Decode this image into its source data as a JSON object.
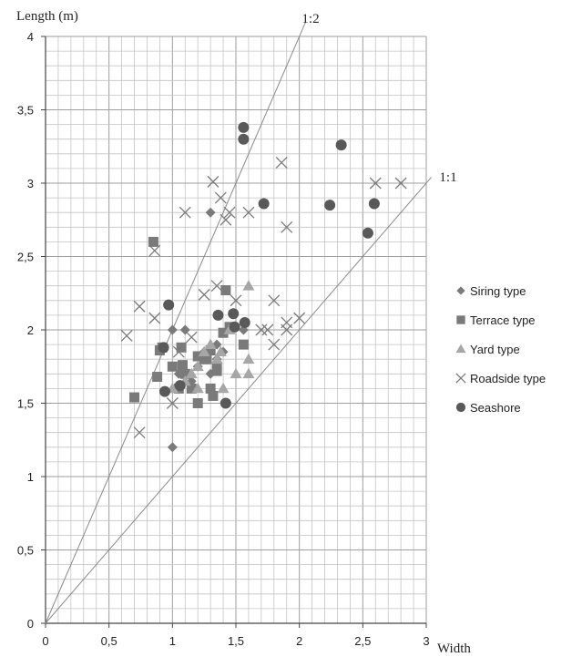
{
  "chart_data": {
    "type": "scatter",
    "xlabel": "Width",
    "ylabel": "Length (m)",
    "xlim": [
      0,
      3
    ],
    "ylim": [
      0,
      4
    ],
    "x_ticks": [
      "0",
      "0,5",
      "1",
      "1,5",
      "2",
      "2,5",
      "3"
    ],
    "y_ticks": [
      "0",
      "0,5",
      "1",
      "1,5",
      "2",
      "2,5",
      "3",
      "3,5",
      "4"
    ],
    "grid": true,
    "legend_position": "right",
    "reference_lines": [
      {
        "label": "1:2",
        "slope": 2
      },
      {
        "label": "1:1",
        "slope": 1
      }
    ],
    "series": [
      {
        "name": "Siring type",
        "marker": "diamond",
        "color": "#7a7a7a",
        "points": [
          [
            1.0,
            1.2
          ],
          [
            1.0,
            2.0
          ],
          [
            1.1,
            2.0
          ],
          [
            1.3,
            2.8
          ],
          [
            1.35,
            1.8
          ],
          [
            1.35,
            1.9
          ],
          [
            1.3,
            1.7
          ],
          [
            1.56,
            2.0
          ],
          [
            1.2,
            1.75
          ],
          [
            1.15,
            1.65
          ],
          [
            1.25,
            1.85
          ],
          [
            1.05,
            1.7
          ],
          [
            1.4,
            1.85
          ],
          [
            1.3,
            1.6
          ]
        ]
      },
      {
        "name": "Terrace type",
        "marker": "square",
        "color": "#7a7a7a",
        "points": [
          [
            0.85,
            2.6
          ],
          [
            0.7,
            1.54
          ],
          [
            0.88,
            1.68
          ],
          [
            0.92,
            1.88
          ],
          [
            0.9,
            1.86
          ],
          [
            1.0,
            1.75
          ],
          [
            1.07,
            1.88
          ],
          [
            1.08,
            1.76
          ],
          [
            1.1,
            1.7
          ],
          [
            1.05,
            1.6
          ],
          [
            1.15,
            1.6
          ],
          [
            1.2,
            1.5
          ],
          [
            1.25,
            1.8
          ],
          [
            1.3,
            1.86
          ],
          [
            1.3,
            1.6
          ],
          [
            1.32,
            1.55
          ],
          [
            1.35,
            1.75
          ],
          [
            1.35,
            1.72
          ],
          [
            1.4,
            1.98
          ],
          [
            1.42,
            2.27
          ],
          [
            1.45,
            2.02
          ],
          [
            1.56,
            1.9
          ],
          [
            1.2,
            1.82
          ],
          [
            1.27,
            1.8
          ]
        ]
      },
      {
        "name": "Yard type",
        "marker": "triangle",
        "color": "#a6a6a6",
        "points": [
          [
            1.6,
            2.3
          ],
          [
            1.6,
            1.8
          ],
          [
            1.6,
            1.7
          ],
          [
            1.5,
            1.7
          ],
          [
            1.4,
            1.6
          ],
          [
            1.35,
            1.8
          ],
          [
            1.3,
            1.9
          ],
          [
            1.25,
            1.85
          ],
          [
            1.2,
            1.75
          ],
          [
            1.15,
            1.7
          ],
          [
            1.0,
            1.6
          ],
          [
            1.1,
            1.65
          ],
          [
            1.2,
            1.6
          ],
          [
            1.38,
            1.85
          ],
          [
            1.45,
            2.0
          ]
        ]
      },
      {
        "name": "Roadside type",
        "marker": "cross",
        "color": "#7a7a7a",
        "points": [
          [
            0.64,
            1.96
          ],
          [
            0.74,
            2.16
          ],
          [
            0.74,
            1.3
          ],
          [
            0.86,
            2.08
          ],
          [
            0.86,
            2.54
          ],
          [
            1.0,
            1.5
          ],
          [
            1.1,
            2.8
          ],
          [
            1.32,
            3.01
          ],
          [
            1.38,
            2.9
          ],
          [
            1.45,
            2.8
          ],
          [
            1.6,
            2.8
          ],
          [
            1.86,
            3.14
          ],
          [
            1.9,
            2.7
          ],
          [
            2.6,
            3.0
          ],
          [
            2.8,
            3.0
          ],
          [
            1.25,
            2.24
          ],
          [
            1.35,
            2.3
          ],
          [
            1.5,
            2.2
          ],
          [
            1.8,
            2.2
          ],
          [
            1.7,
            2.0
          ],
          [
            1.75,
            2.0
          ],
          [
            1.9,
            2.0
          ],
          [
            1.9,
            2.05
          ],
          [
            2.0,
            2.08
          ],
          [
            1.8,
            1.9
          ],
          [
            1.15,
            1.95
          ],
          [
            1.05,
            1.85
          ],
          [
            1.42,
            2.75
          ]
        ]
      },
      {
        "name": "Seashore",
        "marker": "circle",
        "color": "#595959",
        "points": [
          [
            1.56,
            3.38
          ],
          [
            1.56,
            3.3
          ],
          [
            2.33,
            3.26
          ],
          [
            1.72,
            2.86
          ],
          [
            2.24,
            2.85
          ],
          [
            2.59,
            2.86
          ],
          [
            2.54,
            2.66
          ],
          [
            0.97,
            2.17
          ],
          [
            1.36,
            2.1
          ],
          [
            1.48,
            2.11
          ],
          [
            1.57,
            2.05
          ],
          [
            1.49,
            2.02
          ],
          [
            0.93,
            1.88
          ],
          [
            0.94,
            1.58
          ],
          [
            1.06,
            1.62
          ],
          [
            1.42,
            1.5
          ]
        ]
      }
    ]
  }
}
